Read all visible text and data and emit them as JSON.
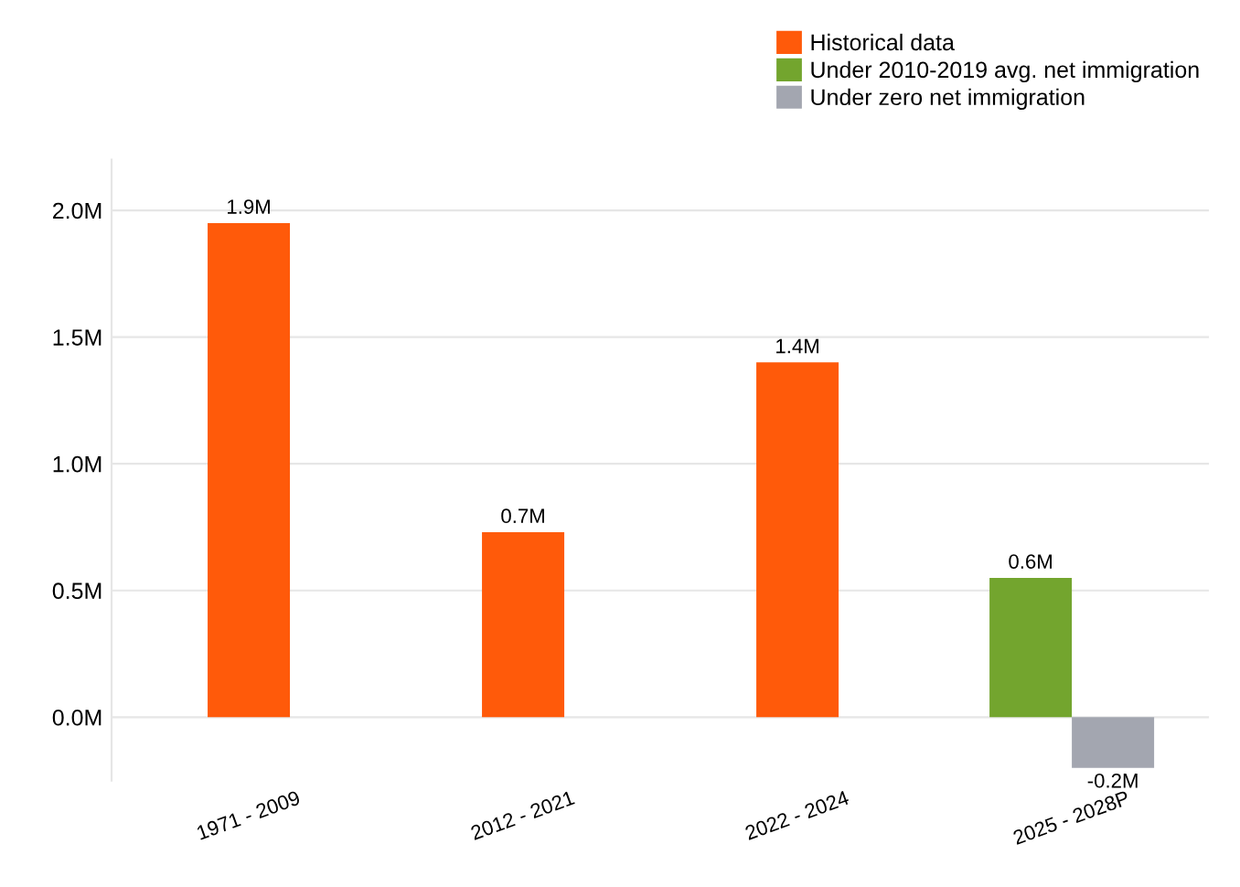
{
  "chart_data": {
    "type": "bar",
    "categories": [
      "1971 - 2009",
      "2012 - 2021",
      "2022 - 2024",
      "2025 - 2028P"
    ],
    "series": [
      {
        "name": "Historical data",
        "color": "#ff5a0a",
        "values": [
          1.95,
          0.73,
          1.4,
          null
        ],
        "value_labels": [
          "1.9M",
          "0.7M",
          "1.4M",
          null
        ]
      },
      {
        "name": "Under 2010-2019 avg. net immigration",
        "color": "#73a52e",
        "values": [
          null,
          null,
          null,
          0.55
        ],
        "value_labels": [
          null,
          null,
          null,
          "0.6M"
        ]
      },
      {
        "name": "Under zero net immigration",
        "color": "#a3a6b0",
        "values": [
          null,
          null,
          null,
          -0.2
        ],
        "value_labels": [
          null,
          null,
          null,
          "-0.2M"
        ]
      }
    ],
    "yticks": [
      {
        "value": 0,
        "label": "0.0M"
      },
      {
        "value": 0.5,
        "label": "0.5M"
      },
      {
        "value": 1.0,
        "label": "1.0M"
      },
      {
        "value": 1.5,
        "label": "1.5M"
      },
      {
        "value": 2.0,
        "label": "2.0M"
      }
    ],
    "ylim": [
      -0.25,
      2.2
    ],
    "grid": "y",
    "legend": "top right"
  }
}
